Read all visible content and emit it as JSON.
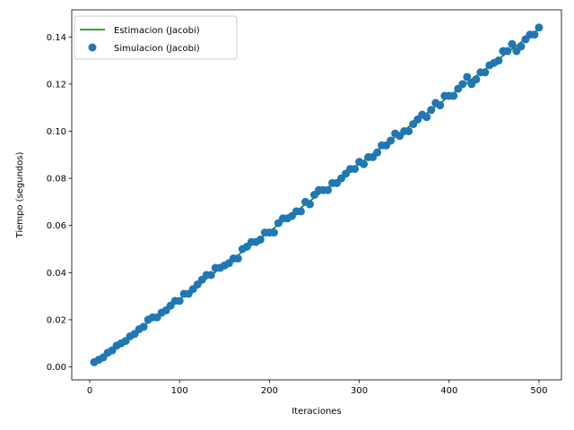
{
  "chart_data": {
    "type": "scatter",
    "title": "",
    "xlabel": "Iteraciones",
    "ylabel": "Tiempo (segundos)",
    "xlim": [
      -20,
      525
    ],
    "ylim": [
      -0.0055,
      0.1515
    ],
    "xticks": [
      0,
      100,
      200,
      300,
      400,
      500
    ],
    "yticks": [
      0.0,
      0.02,
      0.04,
      0.06,
      0.08,
      0.1,
      0.12,
      0.14
    ],
    "ytick_labels": [
      "0.00",
      "0.02",
      "0.04",
      "0.06",
      "0.08",
      "0.10",
      "0.12",
      "0.14"
    ],
    "xtick_labels": [
      "0",
      "100",
      "200",
      "300",
      "400",
      "500"
    ],
    "grid": false,
    "legend_position": "top-left",
    "series": [
      {
        "name": "Estimacion (Jacobi)",
        "kind": "line",
        "color": "#008000",
        "x": [
          5,
          500
        ],
        "y": [
          0.0015,
          0.1435
        ]
      },
      {
        "name": "Simulacion (Jacobi)",
        "kind": "scatter",
        "color": "#1f77b4",
        "x": [
          5,
          10,
          15,
          20,
          25,
          30,
          35,
          40,
          45,
          50,
          55,
          60,
          65,
          70,
          75,
          80,
          85,
          90,
          95,
          100,
          105,
          110,
          115,
          120,
          125,
          130,
          135,
          140,
          145,
          150,
          155,
          160,
          165,
          170,
          175,
          180,
          185,
          190,
          195,
          200,
          205,
          210,
          215,
          220,
          225,
          230,
          235,
          240,
          245,
          250,
          255,
          260,
          265,
          270,
          275,
          280,
          285,
          290,
          295,
          300,
          305,
          310,
          315,
          320,
          325,
          330,
          335,
          340,
          345,
          350,
          355,
          360,
          365,
          370,
          375,
          380,
          385,
          390,
          395,
          400,
          405,
          410,
          415,
          420,
          425,
          430,
          435,
          440,
          445,
          450,
          455,
          460,
          465,
          470,
          475,
          480,
          485,
          490,
          495,
          500
        ],
        "y": [
          0.002,
          0.003,
          0.004,
          0.006,
          0.007,
          0.009,
          0.01,
          0.011,
          0.013,
          0.014,
          0.016,
          0.017,
          0.02,
          0.021,
          0.021,
          0.023,
          0.024,
          0.026,
          0.028,
          0.028,
          0.031,
          0.031,
          0.033,
          0.035,
          0.037,
          0.039,
          0.039,
          0.042,
          0.042,
          0.043,
          0.044,
          0.046,
          0.046,
          0.05,
          0.051,
          0.053,
          0.053,
          0.054,
          0.057,
          0.057,
          0.057,
          0.061,
          0.063,
          0.063,
          0.064,
          0.066,
          0.066,
          0.07,
          0.069,
          0.073,
          0.075,
          0.075,
          0.075,
          0.078,
          0.078,
          0.08,
          0.082,
          0.084,
          0.084,
          0.087,
          0.086,
          0.089,
          0.089,
          0.091,
          0.094,
          0.094,
          0.096,
          0.099,
          0.098,
          0.1,
          0.1,
          0.103,
          0.105,
          0.107,
          0.106,
          0.109,
          0.112,
          0.111,
          0.115,
          0.115,
          0.115,
          0.118,
          0.12,
          0.123,
          0.12,
          0.122,
          0.125,
          0.125,
          0.128,
          0.129,
          0.13,
          0.134,
          0.134,
          0.137,
          0.134,
          0.136,
          0.139,
          0.141,
          0.141,
          0.144
        ]
      }
    ]
  }
}
